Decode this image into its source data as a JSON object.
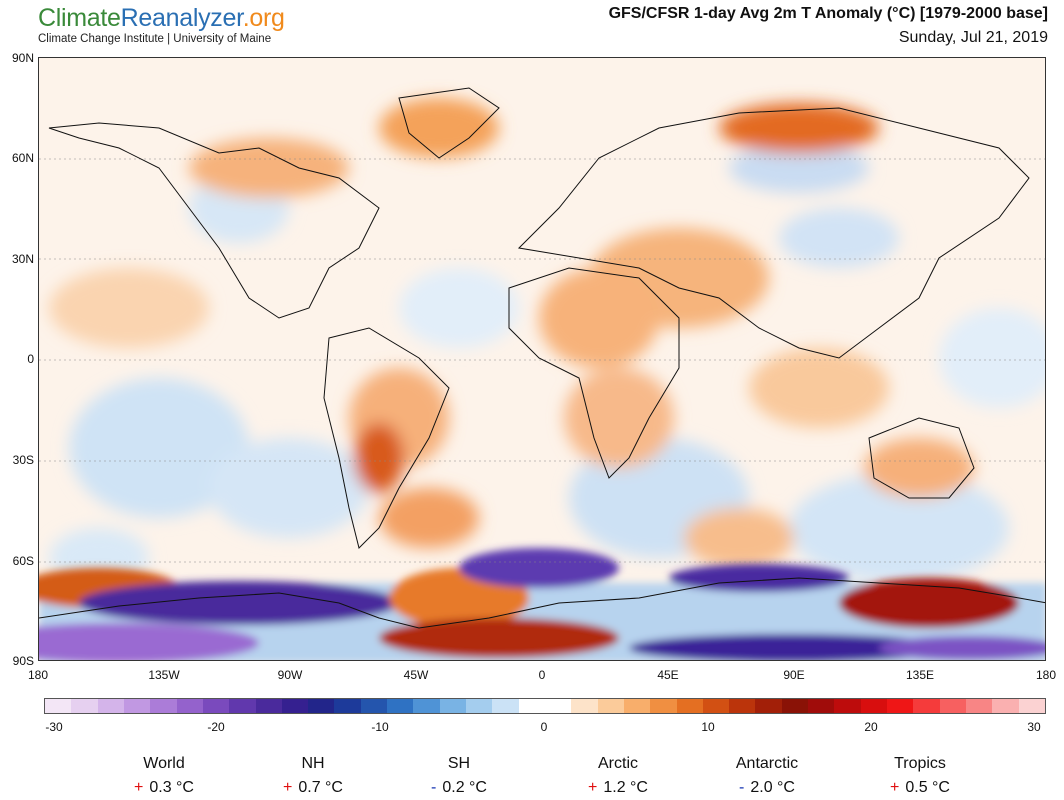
{
  "brand": {
    "logo_part1": "Climate",
    "logo_part2": "Reanalyzer",
    "logo_part3": ".org",
    "subtitle": "Climate Change Institute | University of Maine"
  },
  "title": {
    "main": "GFS/CFSR 1-day Avg 2m T Anomaly (°C) [1979-2000 base]",
    "date": "Sunday, Jul 21, 2019"
  },
  "map": {
    "lat_labels": [
      "90N",
      "60N",
      "30N",
      "0",
      "30S",
      "60S",
      "90S"
    ],
    "lon_labels": [
      "180",
      "135W",
      "90W",
      "45W",
      "0",
      "45E",
      "90E",
      "135E",
      "180"
    ]
  },
  "colorbar": {
    "tick_labels": [
      "-30",
      "-20",
      "-10",
      "0",
      "10",
      "20",
      "30"
    ],
    "colors": [
      "#f3e6f6",
      "#e6d0f0",
      "#d4b4ea",
      "#c198e2",
      "#ab7cd8",
      "#9462cc",
      "#7a4abd",
      "#6138ad",
      "#4a2a9c",
      "#352090",
      "#22258a",
      "#1d3a9a",
      "#2455ad",
      "#2f72c3",
      "#4f93d6",
      "#79b3e4",
      "#a4cdee",
      "#cbe2f6",
      "#ffffff",
      "#ffffff",
      "#fde3c9",
      "#fbcb9a",
      "#f8ae6b",
      "#f08f41",
      "#e46f22",
      "#d25013",
      "#bb340b",
      "#a21f08",
      "#8a1206",
      "#a00c0a",
      "#bd0c0c",
      "#d80e0e",
      "#ef1616",
      "#f53b3b",
      "#f76060",
      "#f88585",
      "#fab0b0",
      "#fbd2d2"
    ]
  },
  "stats": [
    {
      "name": "World",
      "sign": "+",
      "value": "0.3 °C"
    },
    {
      "name": "NH",
      "sign": "+",
      "value": "0.7 °C"
    },
    {
      "name": "SH",
      "sign": "-",
      "value": "0.2 °C"
    },
    {
      "name": "Arctic",
      "sign": "+",
      "value": "1.2 °C"
    },
    {
      "name": "Antarctic",
      "sign": "-",
      "value": "2.0 °C"
    },
    {
      "name": "Tropics",
      "sign": "+",
      "value": "0.5 °C"
    }
  ]
}
